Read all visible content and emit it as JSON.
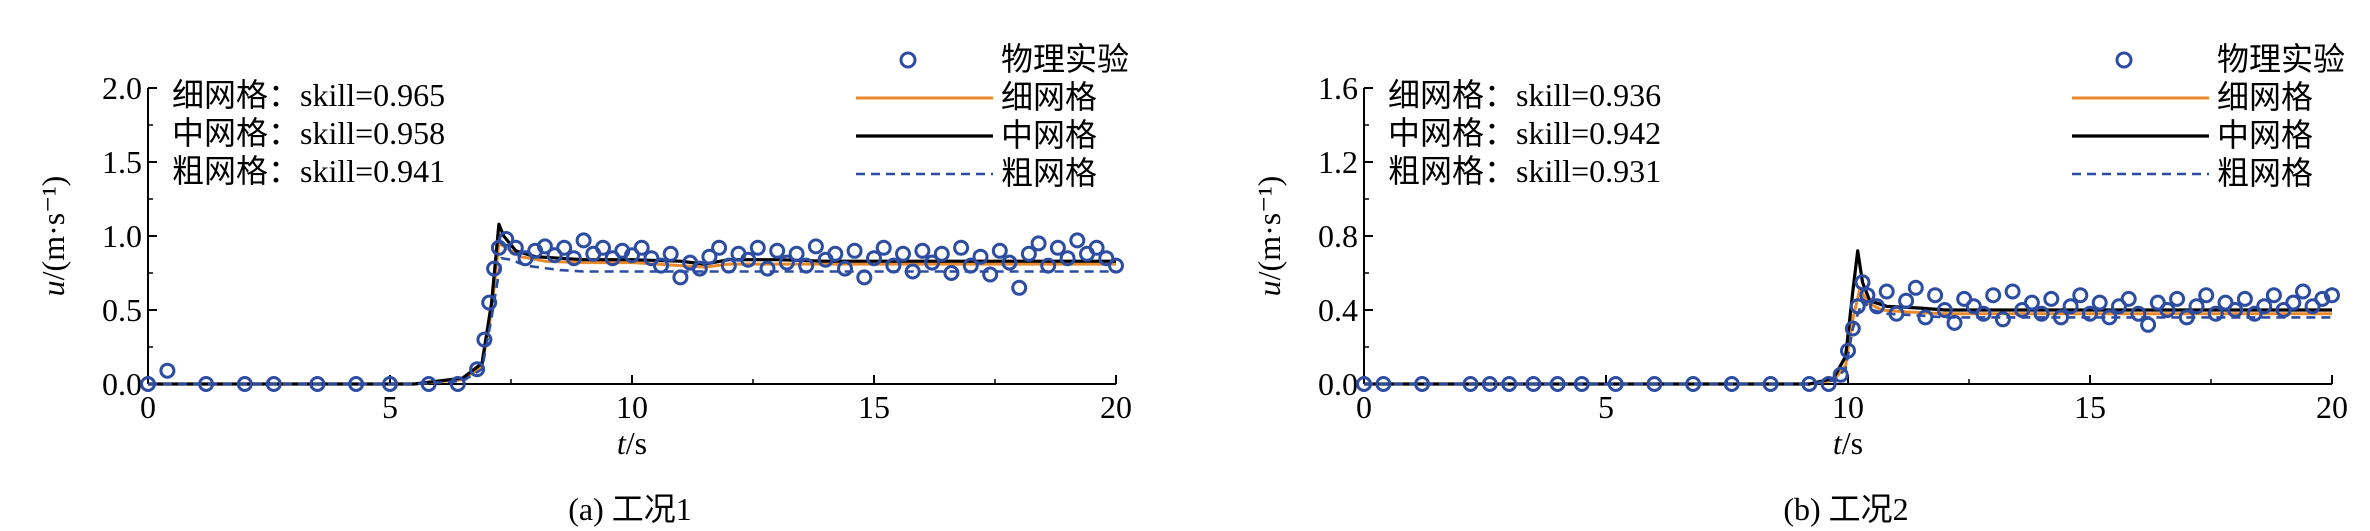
{
  "figure": {
    "legend_labels": [
      "物理实验",
      "细网格",
      "中网格",
      "粗网格"
    ],
    "colors": {
      "experiment": "#2d4da3",
      "fine": "#e88a2c",
      "medium": "#000000",
      "coarse": "#2d4da3"
    }
  },
  "chart_data": [
    {
      "type": "line",
      "caption": "(a) 工况1",
      "xlabel": "t/s",
      "ylabel": "u/(m·s⁻¹)",
      "xlim": [
        0,
        20
      ],
      "ylim": [
        0,
        2.0
      ],
      "xticks": [
        "0",
        "5",
        "10",
        "15",
        "20"
      ],
      "yticks": [
        "0.0",
        "0.5",
        "1.0",
        "1.5",
        "2.0"
      ],
      "skill": [
        "细网格：skill=0.965",
        "中网格：skill=0.958",
        "粗网格：skill=0.941"
      ],
      "legend": [
        "物理实验",
        "细网格",
        "中网格",
        "粗网格"
      ],
      "legend_position": "top-right",
      "series": [
        {
          "name": "物理实验",
          "style": "markers",
          "x": [
            0.0,
            0.4,
            1.2,
            2.0,
            2.6,
            3.5,
            4.3,
            5.0,
            5.8,
            6.4,
            6.8,
            6.95,
            7.05,
            7.15,
            7.25,
            7.4,
            7.6,
            7.8,
            8.0,
            8.2,
            8.4,
            8.6,
            8.8,
            9.0,
            9.2,
            9.4,
            9.6,
            9.8,
            10.0,
            10.2,
            10.4,
            10.6,
            10.8,
            11.0,
            11.2,
            11.4,
            11.6,
            11.8,
            12.0,
            12.2,
            12.4,
            12.6,
            12.8,
            13.0,
            13.2,
            13.4,
            13.6,
            13.8,
            14.0,
            14.2,
            14.4,
            14.6,
            14.8,
            15.0,
            15.2,
            15.4,
            15.6,
            15.8,
            16.0,
            16.2,
            16.4,
            16.6,
            16.8,
            17.0,
            17.2,
            17.4,
            17.6,
            17.8,
            18.0,
            18.2,
            18.4,
            18.6,
            18.8,
            19.0,
            19.2,
            19.4,
            19.6,
            19.8,
            20.0
          ],
          "y": [
            0.0,
            0.09,
            0.0,
            0.0,
            0.0,
            0.0,
            0.0,
            0.0,
            0.0,
            0.0,
            0.1,
            0.3,
            0.55,
            0.78,
            0.92,
            0.98,
            0.92,
            0.85,
            0.9,
            0.93,
            0.87,
            0.92,
            0.85,
            0.97,
            0.88,
            0.92,
            0.85,
            0.9,
            0.87,
            0.92,
            0.85,
            0.8,
            0.88,
            0.72,
            0.82,
            0.78,
            0.86,
            0.92,
            0.8,
            0.88,
            0.84,
            0.92,
            0.78,
            0.9,
            0.82,
            0.88,
            0.8,
            0.93,
            0.84,
            0.88,
            0.78,
            0.9,
            0.72,
            0.85,
            0.92,
            0.8,
            0.88,
            0.76,
            0.9,
            0.82,
            0.88,
            0.75,
            0.92,
            0.8,
            0.86,
            0.74,
            0.9,
            0.82,
            0.65,
            0.88,
            0.95,
            0.8,
            0.92,
            0.85,
            0.97,
            0.88,
            0.92,
            0.85,
            0.8
          ]
        },
        {
          "name": "细网格",
          "style": "solid",
          "x": [
            0,
            5.5,
            6.5,
            6.9,
            7.1,
            7.25,
            7.4,
            7.7,
            8.2,
            9,
            10,
            11,
            11.5,
            12,
            13,
            14,
            15,
            16,
            17,
            18,
            19,
            20
          ],
          "y": [
            0,
            0,
            0.03,
            0.12,
            0.5,
            0.95,
            0.92,
            0.86,
            0.83,
            0.82,
            0.82,
            0.8,
            0.79,
            0.81,
            0.81,
            0.81,
            0.81,
            0.81,
            0.81,
            0.81,
            0.81,
            0.81
          ]
        },
        {
          "name": "中网格",
          "style": "solid",
          "x": [
            0,
            5.5,
            6.5,
            6.9,
            7.1,
            7.25,
            7.35,
            7.6,
            8.0,
            9,
            10,
            11,
            11.5,
            12,
            13,
            14,
            15,
            16,
            17,
            18,
            19,
            20
          ],
          "y": [
            0,
            0,
            0.04,
            0.14,
            0.55,
            1.08,
            1.0,
            0.9,
            0.86,
            0.84,
            0.84,
            0.83,
            0.81,
            0.84,
            0.84,
            0.83,
            0.83,
            0.83,
            0.83,
            0.83,
            0.83,
            0.83
          ]
        },
        {
          "name": "粗网格",
          "style": "dashed",
          "x": [
            0,
            5.5,
            6.5,
            6.9,
            7.1,
            7.3,
            7.5,
            7.8,
            8.5,
            9,
            10,
            11,
            12,
            13,
            14,
            15,
            16,
            17,
            18,
            19,
            20
          ],
          "y": [
            0,
            0,
            0.02,
            0.1,
            0.45,
            0.85,
            0.84,
            0.8,
            0.77,
            0.76,
            0.76,
            0.76,
            0.76,
            0.76,
            0.76,
            0.76,
            0.76,
            0.76,
            0.76,
            0.76,
            0.76
          ]
        }
      ]
    },
    {
      "type": "line",
      "caption": "(b) 工况2",
      "xlabel": "t/s",
      "ylabel": "u/(m·s⁻¹)",
      "xlim": [
        0,
        20
      ],
      "ylim": [
        0,
        1.6
      ],
      "xticks": [
        "0",
        "5",
        "10",
        "15",
        "20"
      ],
      "yticks": [
        "0.0",
        "0.4",
        "0.8",
        "1.2",
        "1.6"
      ],
      "skill": [
        "细网格：skill=0.936",
        "中网格：skill=0.942",
        "粗网格：skill=0.931"
      ],
      "legend": [
        "物理实验",
        "细网格",
        "中网格",
        "粗网格"
      ],
      "legend_position": "top-right",
      "series": [
        {
          "name": "物理实验",
          "style": "markers",
          "x": [
            0.0,
            0.4,
            1.2,
            2.2,
            2.6,
            3.0,
            3.5,
            4.0,
            4.5,
            5.2,
            6.0,
            6.8,
            7.6,
            8.4,
            9.2,
            9.6,
            9.85,
            10.0,
            10.1,
            10.2,
            10.3,
            10.4,
            10.6,
            10.8,
            11.0,
            11.2,
            11.4,
            11.6,
            11.8,
            12.0,
            12.2,
            12.4,
            12.6,
            12.8,
            13.0,
            13.2,
            13.4,
            13.6,
            13.8,
            14.0,
            14.2,
            14.4,
            14.6,
            14.8,
            15.0,
            15.2,
            15.4,
            15.6,
            15.8,
            16.0,
            16.2,
            16.4,
            16.6,
            16.8,
            17.0,
            17.2,
            17.4,
            17.6,
            17.8,
            18.0,
            18.2,
            18.4,
            18.6,
            18.8,
            19.0,
            19.2,
            19.4,
            19.6,
            19.8,
            20.0
          ],
          "y": [
            0.0,
            0.0,
            0.0,
            0.0,
            0.0,
            0.0,
            0.0,
            0.0,
            0.0,
            0.0,
            0.0,
            0.0,
            0.0,
            0.0,
            0.0,
            0.0,
            0.05,
            0.18,
            0.3,
            0.42,
            0.55,
            0.48,
            0.42,
            0.5,
            0.38,
            0.45,
            0.52,
            0.36,
            0.48,
            0.4,
            0.33,
            0.46,
            0.42,
            0.38,
            0.48,
            0.35,
            0.5,
            0.4,
            0.44,
            0.38,
            0.46,
            0.36,
            0.42,
            0.48,
            0.38,
            0.44,
            0.36,
            0.42,
            0.46,
            0.38,
            0.32,
            0.44,
            0.4,
            0.46,
            0.36,
            0.42,
            0.48,
            0.38,
            0.44,
            0.4,
            0.46,
            0.38,
            0.42,
            0.48,
            0.4,
            0.44,
            0.5,
            0.42,
            0.46,
            0.48
          ]
        },
        {
          "name": "细网格",
          "style": "solid",
          "x": [
            0,
            9.2,
            9.7,
            9.95,
            10.1,
            10.25,
            10.4,
            10.7,
            11.2,
            12,
            13,
            14,
            15,
            16,
            17,
            18,
            19,
            20
          ],
          "y": [
            0,
            0,
            0.02,
            0.1,
            0.35,
            0.52,
            0.44,
            0.4,
            0.39,
            0.38,
            0.38,
            0.38,
            0.38,
            0.38,
            0.38,
            0.38,
            0.38,
            0.38
          ]
        },
        {
          "name": "中网格",
          "style": "solid",
          "x": [
            0,
            9.2,
            9.7,
            9.95,
            10.1,
            10.2,
            10.3,
            10.45,
            10.8,
            11.5,
            12,
            13,
            14,
            15,
            16,
            17,
            18,
            19,
            20
          ],
          "y": [
            0,
            0,
            0.03,
            0.15,
            0.5,
            0.72,
            0.55,
            0.45,
            0.42,
            0.41,
            0.4,
            0.4,
            0.4,
            0.4,
            0.4,
            0.4,
            0.4,
            0.4,
            0.4
          ]
        },
        {
          "name": "粗网格",
          "style": "dashed",
          "x": [
            0,
            9.2,
            9.7,
            9.95,
            10.1,
            10.3,
            10.5,
            10.8,
            11.5,
            12,
            13,
            14,
            15,
            16,
            17,
            18,
            19,
            20
          ],
          "y": [
            0,
            0,
            0.02,
            0.08,
            0.3,
            0.45,
            0.4,
            0.38,
            0.37,
            0.36,
            0.36,
            0.36,
            0.36,
            0.36,
            0.36,
            0.36,
            0.36,
            0.36
          ]
        }
      ]
    }
  ]
}
